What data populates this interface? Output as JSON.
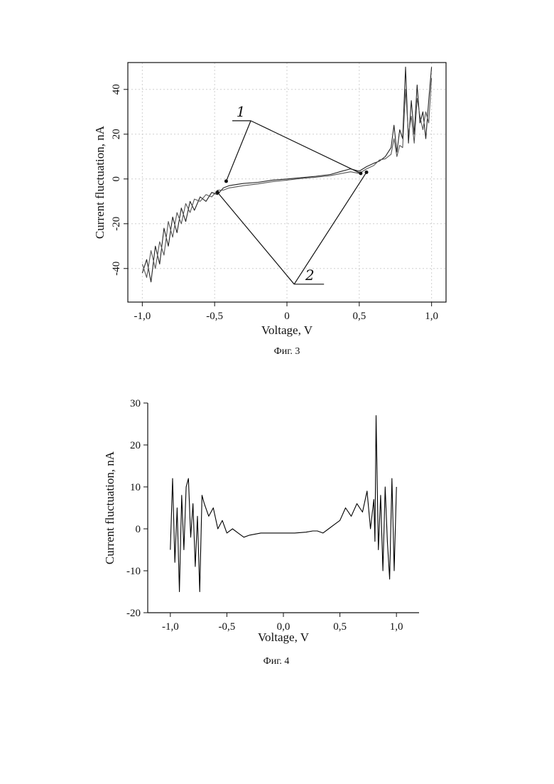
{
  "chart_data": [
    {
      "type": "line",
      "title": "",
      "xlabel": "Voltage, V",
      "ylabel": "Current fluctuation, nA",
      "xlim": [
        -1.1,
        1.1
      ],
      "ylim": [
        -55,
        52
      ],
      "grid": true,
      "x_ticks": [
        -1.0,
        -0.5,
        0.0,
        0.5,
        1.0
      ],
      "x_tick_labels": [
        "-1,0",
        "-0,5",
        "0",
        "0,5",
        "1,0"
      ],
      "y_ticks": [
        -40,
        -20,
        0,
        20,
        40
      ],
      "y_tick_labels": [
        "-40",
        "-20",
        "0",
        "20",
        "40"
      ],
      "caption": "Фиг. 3",
      "annotations": [
        {
          "label": "1",
          "points": [
            [
              -0.42,
              -1
            ],
            [
              0.51,
              2.5
            ]
          ],
          "label_anchor": [
            -0.25,
            26
          ]
        },
        {
          "label": "2",
          "points": [
            [
              -0.48,
              -6
            ],
            [
              0.55,
              3
            ]
          ],
          "label_anchor": [
            0.05,
            -47
          ]
        }
      ],
      "series": [
        {
          "x": [
            -1.0,
            -0.97,
            -0.94,
            -0.91,
            -0.88,
            -0.85,
            -0.82,
            -0.79,
            -0.76,
            -0.73,
            -0.7,
            -0.67,
            -0.64,
            -0.6,
            -0.56,
            -0.52,
            -0.48,
            -0.44,
            -0.4,
            -0.35,
            -0.3,
            -0.2,
            -0.1,
            0.0,
            0.1,
            0.2,
            0.3,
            0.38,
            0.44,
            0.5,
            0.55,
            0.6,
            0.64,
            0.68,
            0.72,
            0.74,
            0.76,
            0.78,
            0.8,
            0.82,
            0.84,
            0.86,
            0.88,
            0.9,
            0.92,
            0.94,
            0.96,
            0.98,
            1.0
          ],
          "values": [
            -42,
            -36,
            -46,
            -30,
            -38,
            -22,
            -30,
            -17,
            -24,
            -13,
            -19,
            -10,
            -14,
            -8,
            -10,
            -6,
            -7,
            -4,
            -3,
            -2.5,
            -2,
            -1.5,
            -0.5,
            0,
            0.6,
            1.2,
            2,
            3.5,
            4.5,
            3.5,
            5.5,
            7,
            8,
            10,
            14,
            24,
            12,
            22,
            18,
            50,
            16,
            35,
            20,
            42,
            25,
            30,
            18,
            35,
            50
          ]
        },
        {
          "x": [
            -1.0,
            -0.97,
            -0.94,
            -0.91,
            -0.88,
            -0.85,
            -0.82,
            -0.79,
            -0.76,
            -0.73,
            -0.7,
            -0.67,
            -0.64,
            -0.6,
            -0.56,
            -0.52,
            -0.48,
            -0.44,
            -0.4,
            -0.35,
            -0.3,
            -0.2,
            -0.1,
            0.0,
            0.1,
            0.2,
            0.3,
            0.38,
            0.44,
            0.5,
            0.55,
            0.6,
            0.64,
            0.68,
            0.72,
            0.74,
            0.76,
            0.78,
            0.8,
            0.82,
            0.84,
            0.86,
            0.88,
            0.9,
            0.92,
            0.94,
            0.96,
            0.98,
            1.0
          ],
          "values": [
            -38,
            -44,
            -32,
            -40,
            -28,
            -34,
            -19,
            -26,
            -15,
            -20,
            -11,
            -15,
            -9,
            -10,
            -7,
            -8,
            -5,
            -5,
            -4,
            -3.5,
            -3,
            -2.2,
            -1.2,
            -0.5,
            0.2,
            0.8,
            1.5,
            2.5,
            3.2,
            2.5,
            4.5,
            6,
            8.5,
            9,
            11,
            18,
            10,
            15,
            14,
            40,
            20,
            28,
            16,
            36,
            28,
            22,
            30,
            25,
            45
          ]
        }
      ]
    },
    {
      "type": "line",
      "title": "",
      "xlabel": "Voltage, V",
      "ylabel": "Current fluctuation, nA",
      "xlim": [
        -1.2,
        1.2
      ],
      "ylim": [
        -20,
        30
      ],
      "grid": false,
      "x_ticks": [
        -1.0,
        -0.5,
        0.0,
        0.5,
        1.0
      ],
      "x_tick_labels": [
        "-1,0",
        "-0,5",
        "0,0",
        "0,5",
        "1,0"
      ],
      "y_ticks": [
        -20,
        -10,
        0,
        10,
        20,
        30
      ],
      "y_tick_labels": [
        "-20",
        "-10",
        "0",
        "10",
        "20",
        "30"
      ],
      "caption": "Фиг. 4",
      "series": [
        {
          "x": [
            -1.0,
            -0.98,
            -0.96,
            -0.94,
            -0.92,
            -0.9,
            -0.88,
            -0.86,
            -0.84,
            -0.82,
            -0.8,
            -0.78,
            -0.76,
            -0.74,
            -0.72,
            -0.7,
            -0.66,
            -0.62,
            -0.58,
            -0.54,
            -0.5,
            -0.45,
            -0.4,
            -0.35,
            -0.3,
            -0.2,
            -0.1,
            0.0,
            0.1,
            0.2,
            0.26,
            0.3,
            0.35,
            0.4,
            0.45,
            0.5,
            0.55,
            0.6,
            0.65,
            0.7,
            0.74,
            0.77,
            0.8,
            0.81,
            0.82,
            0.84,
            0.86,
            0.88,
            0.9,
            0.92,
            0.94,
            0.96,
            0.98,
            1.0
          ],
          "values": [
            -5,
            12,
            -8,
            5,
            -15,
            8,
            -5,
            10,
            12,
            -2,
            6,
            -9,
            3,
            -15,
            8,
            6,
            3,
            5,
            0,
            2,
            -1,
            0,
            -1,
            -2,
            -1.5,
            -1,
            -1,
            -1,
            -1,
            -0.8,
            -0.5,
            -0.5,
            -1,
            0,
            1,
            2,
            5,
            3,
            6,
            4,
            9,
            0,
            7,
            -3,
            27,
            -5,
            8,
            -10,
            10,
            -3,
            -12,
            12,
            -10,
            10
          ]
        }
      ]
    }
  ]
}
